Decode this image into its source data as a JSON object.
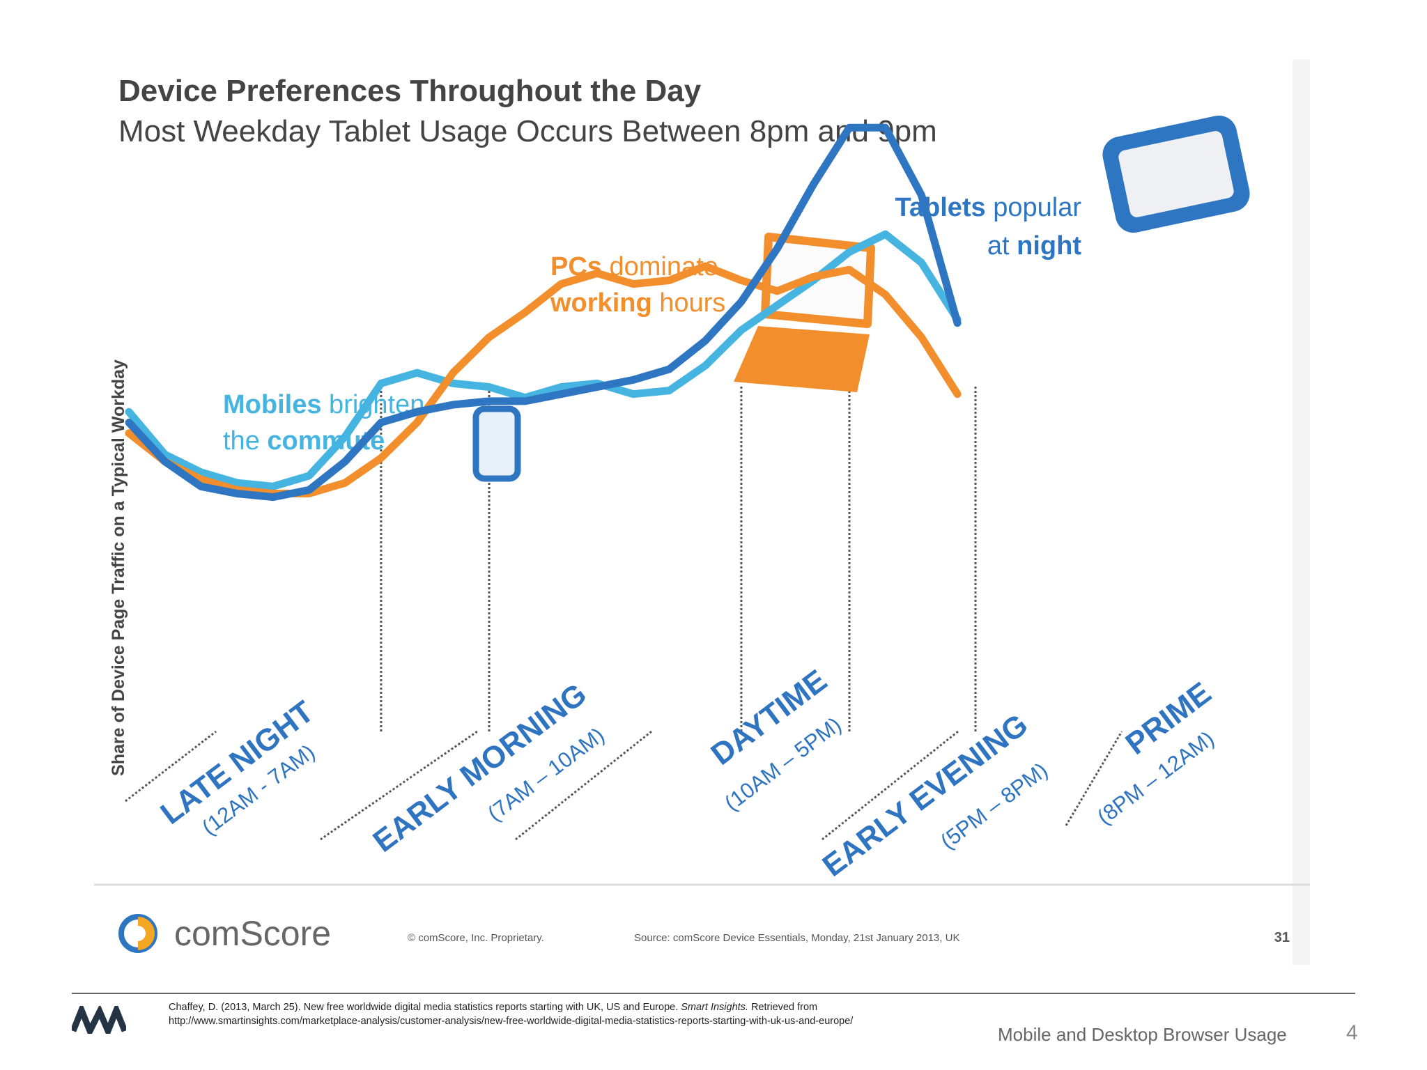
{
  "chart_data": {
    "type": "line",
    "title": "Device Preferences Throughout the Day",
    "subtitle": "Most Weekday Tablet Usage Occurs Between 8pm and 9pm",
    "ylabel": "Share of Device Page Traffic on a Typical Workday",
    "x_range": [
      0,
      23.5
    ],
    "y_range": [
      0,
      100
    ],
    "bands": [
      {
        "name": "LATE NIGHT",
        "range": "(12AM - 7AM)",
        "start": 0,
        "end": 7
      },
      {
        "name": "EARLY MORNING",
        "range": "(7AM – 10AM)",
        "start": 7,
        "end": 10
      },
      {
        "name": "DAYTIME",
        "range": "(10AM – 5PM)",
        "start": 10,
        "end": 17
      },
      {
        "name": "EARLY EVENING",
        "range": "(5PM – 8PM)",
        "start": 17,
        "end": 20
      },
      {
        "name": "PRIME",
        "range": "(8PM – 12AM)",
        "start": 20,
        "end": 24
      }
    ],
    "series": [
      {
        "device": "mobile",
        "color": "#46b4e0",
        "points": [
          [
            0,
            38
          ],
          [
            1,
            26
          ],
          [
            2,
            21
          ],
          [
            3,
            18
          ],
          [
            4,
            17
          ],
          [
            5,
            20
          ],
          [
            6,
            31
          ],
          [
            7,
            46
          ],
          [
            8,
            49
          ],
          [
            9,
            46
          ],
          [
            10,
            45
          ],
          [
            11,
            42
          ],
          [
            12,
            45
          ],
          [
            13,
            46
          ],
          [
            14,
            43
          ],
          [
            15,
            44
          ],
          [
            16,
            51
          ],
          [
            17,
            61
          ],
          [
            18,
            68
          ],
          [
            19,
            75
          ],
          [
            20,
            83
          ],
          [
            21,
            88
          ],
          [
            22,
            80
          ],
          [
            23,
            64
          ]
        ]
      },
      {
        "device": "pc",
        "color": "#f28e2b",
        "points": [
          [
            0,
            32
          ],
          [
            1,
            24
          ],
          [
            2,
            19
          ],
          [
            3,
            16
          ],
          [
            4,
            15
          ],
          [
            5,
            15
          ],
          [
            6,
            18
          ],
          [
            7,
            25
          ],
          [
            8,
            35
          ],
          [
            9,
            49
          ],
          [
            10,
            59
          ],
          [
            11,
            66
          ],
          [
            12,
            74
          ],
          [
            13,
            77
          ],
          [
            14,
            74
          ],
          [
            15,
            75
          ],
          [
            16,
            79
          ],
          [
            17,
            75
          ],
          [
            18,
            72
          ],
          [
            19,
            76
          ],
          [
            20,
            78
          ],
          [
            21,
            71
          ],
          [
            22,
            59
          ],
          [
            23,
            43
          ]
        ]
      },
      {
        "device": "tablet",
        "color": "#2e75c2",
        "points": [
          [
            0,
            35
          ],
          [
            1,
            24
          ],
          [
            2,
            17
          ],
          [
            3,
            15
          ],
          [
            4,
            14
          ],
          [
            5,
            16
          ],
          [
            6,
            24
          ],
          [
            7,
            35
          ],
          [
            8,
            38
          ],
          [
            9,
            40
          ],
          [
            10,
            41
          ],
          [
            11,
            41
          ],
          [
            12,
            43
          ],
          [
            13,
            45
          ],
          [
            14,
            47
          ],
          [
            15,
            50
          ],
          [
            16,
            58
          ],
          [
            17,
            69
          ],
          [
            18,
            84
          ],
          [
            19,
            102
          ],
          [
            20,
            118
          ],
          [
            21,
            118
          ],
          [
            22,
            99
          ],
          [
            23,
            63
          ]
        ]
      }
    ],
    "annotations": {
      "mobiles": {
        "strong1": "Mobiles",
        "rest1": " brighten",
        "rest2": "the ",
        "strong2": "commute"
      },
      "pcs": {
        "strong1": "PCs",
        "rest1": " dominate",
        "strong2": "working",
        "rest2": " hours"
      },
      "tablets": {
        "strong1": "Tablets",
        "rest1": " popular",
        "rest2": "at ",
        "strong2": "night"
      }
    },
    "grid": false,
    "legend": "none"
  },
  "slide_footer": {
    "brand": "comScore",
    "copyright": "© comScore, Inc.   Proprietary.",
    "source": "Source: comScore Device Essentials, Monday, 21st January 2013, UK",
    "slide_number": "31"
  },
  "citation": {
    "part1": "Chaffey, D. (2013, March 25). New free worldwide digital media statistics reports starting with UK, US and Europe. ",
    "journal": "Smart Insights.",
    "part2": " Retrieved from",
    "url": "http://www.smartinsights.com/marketplace-analysis/customer-analysis/new-free-worldwide-digital-media-statistics-reports-starting-with-uk-us-and-europe/"
  },
  "footer": {
    "title": "Mobile and Desktop Browser Usage",
    "page_number": "4"
  }
}
